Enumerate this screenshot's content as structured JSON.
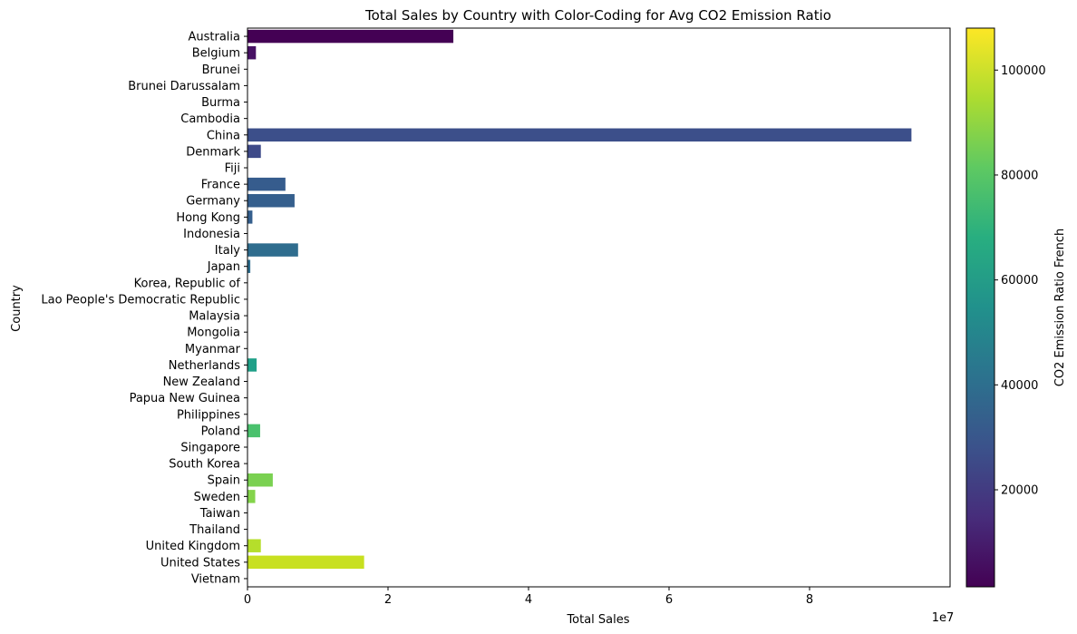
{
  "chart_data": {
    "type": "bar",
    "orientation": "horizontal",
    "title": "Total Sales by Country with Color-Coding for Avg CO2 Emission Ratio",
    "xlabel": "Total Sales",
    "ylabel": "Country",
    "x_scale_label": "1e7",
    "xlim": [
      0,
      10
    ],
    "x_ticks": [
      "0",
      "2",
      "4",
      "6",
      "8"
    ],
    "x_tick_values": [
      0,
      2,
      4,
      6,
      8
    ],
    "colorbar": {
      "label": "CO2 Emission Ratio French",
      "range": [
        1500,
        108000
      ],
      "ticks": [
        "20000",
        "40000",
        "60000",
        "80000",
        "100000"
      ],
      "tick_values": [
        20000,
        40000,
        60000,
        80000,
        100000
      ],
      "colormap": "viridis"
    },
    "categories": [
      "Australia",
      "Belgium",
      "Brunei",
      "Brunei Darussalam",
      "Burma",
      "Cambodia",
      "China",
      "Denmark",
      "Fiji",
      "France",
      "Germany",
      "Hong Kong",
      "Indonesia",
      "Italy",
      "Japan",
      "Korea, Republic of",
      "Lao People's Democratic Republic",
      "Malaysia",
      "Mongolia",
      "Myanmar",
      "Netherlands",
      "New Zealand",
      "Papua New Guinea",
      "Philippines",
      "Poland",
      "Singapore",
      "South Korea",
      "Spain",
      "Sweden",
      "Taiwan",
      "Thailand",
      "United Kingdom",
      "United States",
      "Vietnam"
    ],
    "values": [
      2.93,
      0.12,
      0,
      0,
      0,
      0,
      9.45,
      0.19,
      0,
      0.54,
      0.67,
      0.07,
      0,
      0.72,
      0.04,
      0,
      0,
      0,
      0,
      0,
      0.13,
      0,
      0,
      0,
      0.18,
      0,
      0,
      0.36,
      0.11,
      0,
      0,
      0.19,
      1.66,
      0
    ],
    "bar_colors": [
      "#440154",
      "#471164",
      "#482173",
      "#482173",
      "#482173",
      "#482173",
      "#3c4f8a",
      "#3e4a89",
      "#3e4a89",
      "#365c8d",
      "#355f8d",
      "#355f8d",
      "#31688e",
      "#2f6d8e",
      "#2e6e8e",
      "#2e6e8e",
      "#2e6e8e",
      "#2e6e8e",
      "#2e6e8e",
      "#2e6e8e",
      "#1fa088",
      "#27ad81",
      "#27ad81",
      "#27ad81",
      "#4ac16d",
      "#4ac16d",
      "#4ac16d",
      "#7ad151",
      "#84d44b",
      "#84d44b",
      "#84d44b",
      "#b5de2b",
      "#c8e020",
      "#c8e020"
    ]
  }
}
